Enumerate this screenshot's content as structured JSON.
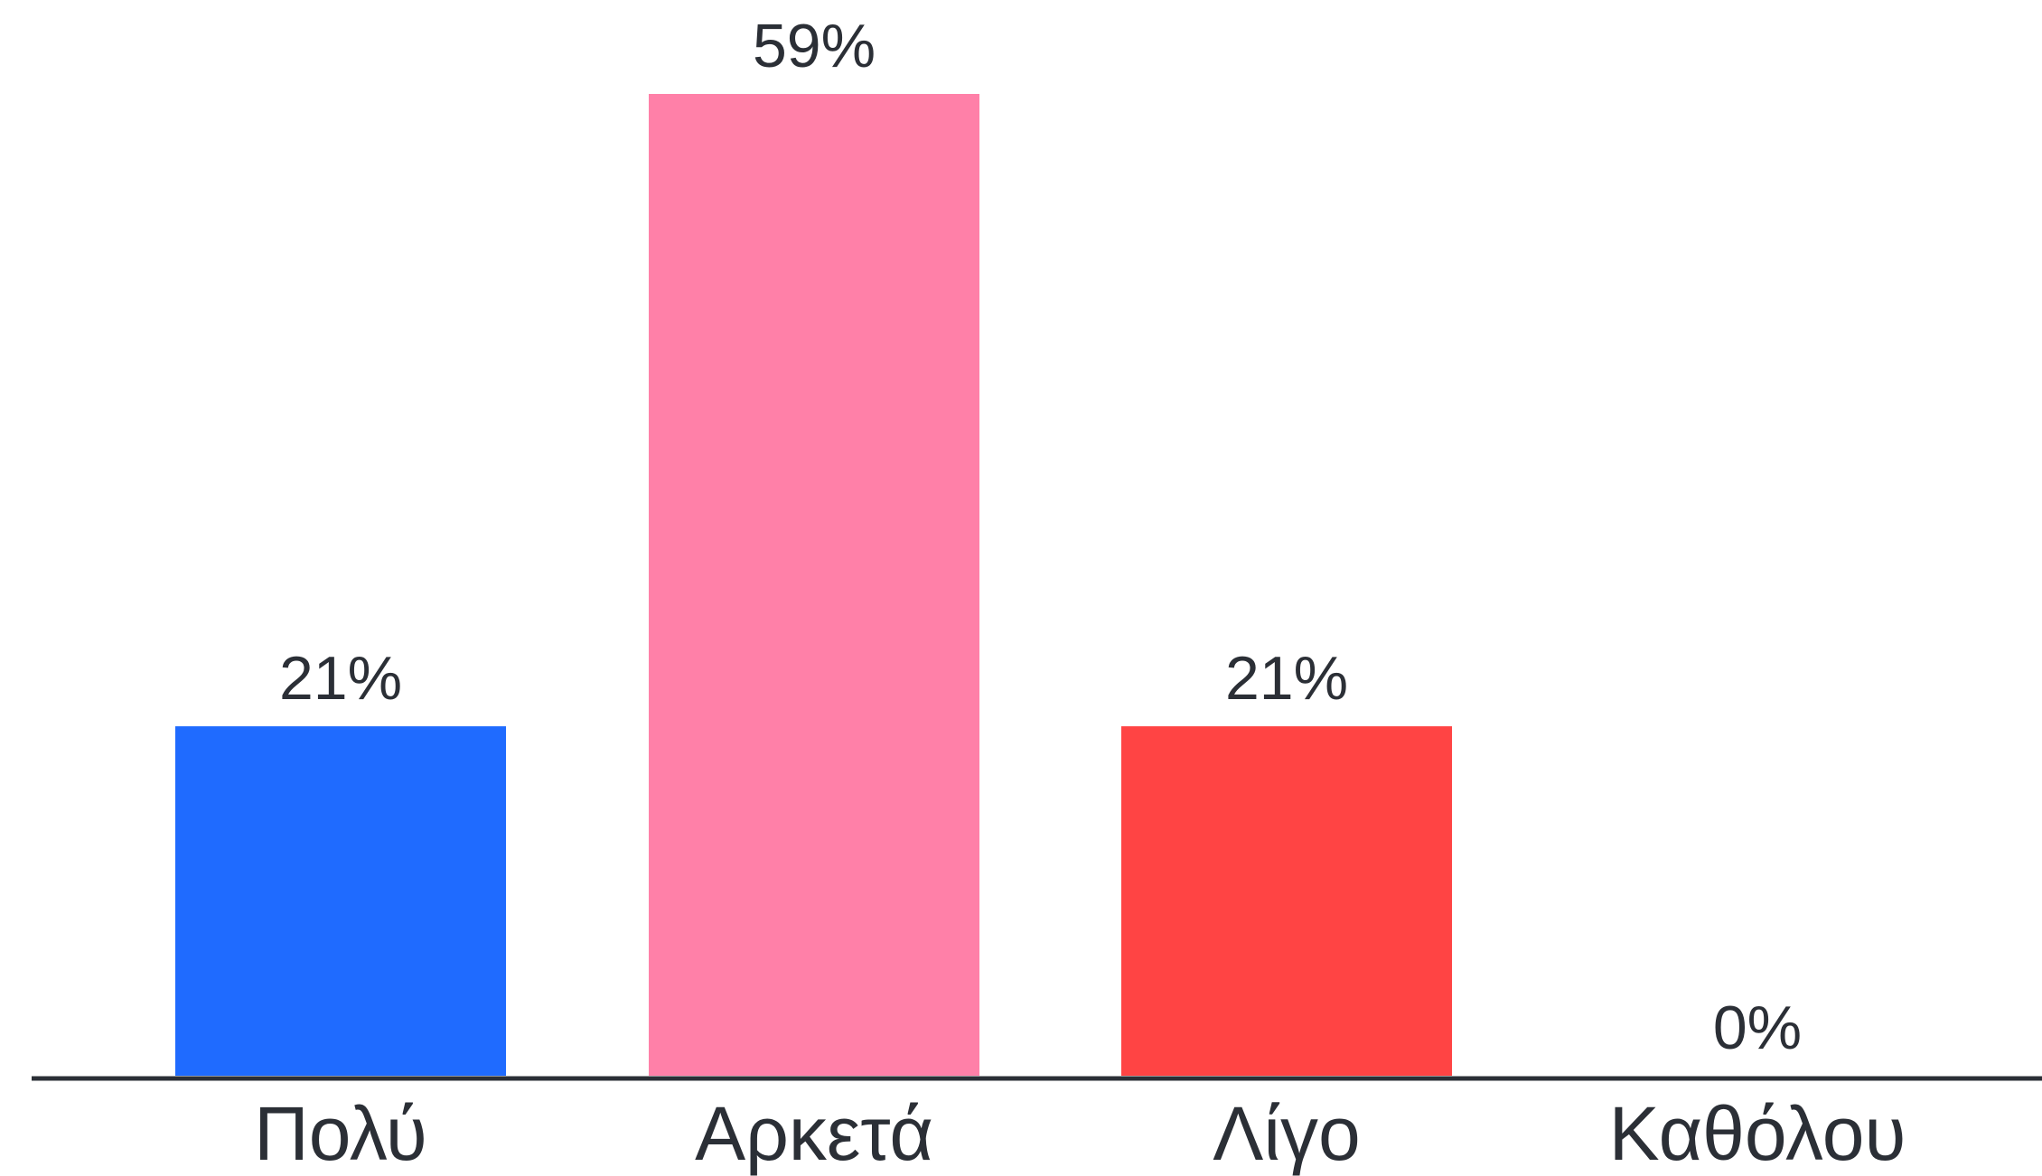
{
  "chart_data": {
    "type": "bar",
    "categories": [
      "Πολύ",
      "Αρκετά",
      "Λίγο",
      "Καθόλου"
    ],
    "values": [
      21,
      59,
      21,
      0
    ],
    "value_labels": [
      "21%",
      "59%",
      "21%",
      "0%"
    ],
    "colors": [
      "#1f6bff",
      "#ff80a8",
      "#ff4444",
      "#ffc300"
    ]
  }
}
